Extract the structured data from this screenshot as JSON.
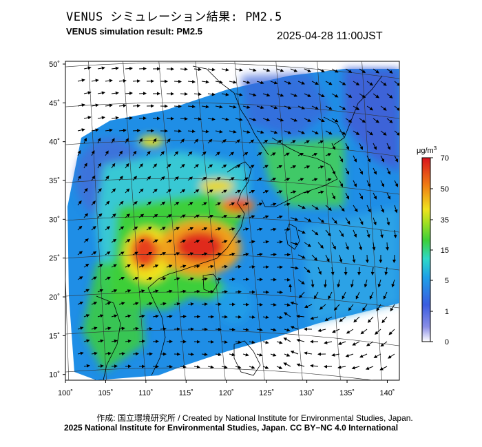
{
  "header": {
    "title_jp": "VENUS シミュレーション結果: PM2.5",
    "title_en": "VENUS simulation result: PM2.5",
    "timestamp": "2025-04-28 11:00JST"
  },
  "map": {
    "lat_labels": [
      "50˚",
      "45˚",
      "40˚",
      "35˚",
      "30˚",
      "25˚",
      "20˚",
      "15˚",
      "10˚"
    ],
    "lon_labels": [
      "100˚",
      "105˚",
      "110˚",
      "115˚",
      "120˚",
      "125˚",
      "130˚",
      "135˚",
      "140˚"
    ],
    "lat_values": [
      50,
      45,
      40,
      35,
      30,
      25,
      20,
      15,
      10
    ],
    "lon_values": [
      100,
      105,
      110,
      115,
      120,
      125,
      130,
      135,
      140
    ]
  },
  "colorbar": {
    "unit": "μg/m",
    "unit_sup": "3",
    "ticks": [
      "70",
      "50",
      "35",
      "15",
      "5",
      "1",
      "0"
    ],
    "tick_values": [
      70,
      50,
      35,
      15,
      5,
      1,
      0
    ],
    "colors": [
      "#ffffff",
      "#4a5cd6",
      "#1e9be8",
      "#2fd8c8",
      "#3ccf3a",
      "#f0e21e",
      "#f07d14",
      "#d8141e"
    ]
  },
  "credits": {
    "jp": "作成: 国立環境研究所 / Created by National Institute for Environmental Studies, Japan.",
    "en": "2025 National Institute for Environmental Studies, Japan. CC BY−NC 4.0 International"
  }
}
